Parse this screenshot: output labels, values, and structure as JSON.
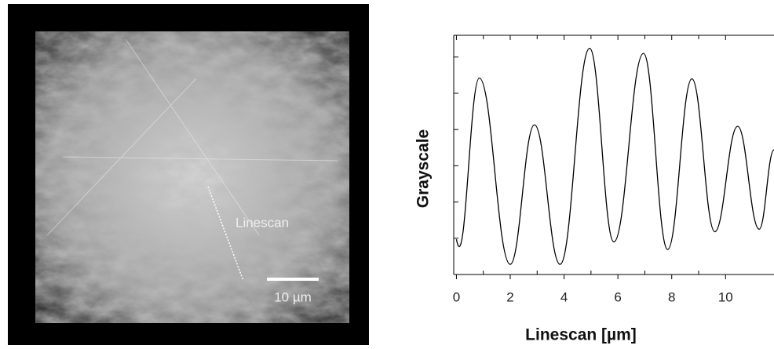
{
  "micrograph": {
    "annotation": "Linescan",
    "scale_bar": "10 µm"
  },
  "chart_data": {
    "type": "line",
    "xlabel": "Linescan [µm]",
    "ylabel": "Grayscale",
    "x": [
      0,
      0.85,
      2.0,
      2.9,
      3.85,
      4.95,
      5.85,
      6.95,
      7.85,
      8.75,
      9.6,
      10.45,
      11.25,
      11.8
    ],
    "values": [
      0.97,
      5.42,
      0.28,
      4.13,
      0.28,
      6.24,
      0.9,
      6.1,
      0.69,
      5.4,
      1.18,
      4.09,
      1.25,
      3.44
    ],
    "color": "#000000",
    "xlim": [
      -0.1,
      11.8
    ],
    "xticks": [
      0,
      2,
      4,
      6,
      8,
      10
    ],
    "ylim": [
      0,
      6.6
    ],
    "yticks": [
      0,
      1,
      2,
      3,
      4,
      5,
      6
    ]
  }
}
